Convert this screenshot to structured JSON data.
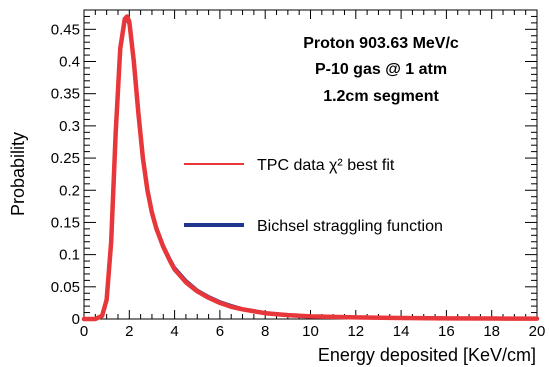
{
  "chart_data": {
    "type": "line",
    "xlabel": "Energy deposited [KeV/cm]",
    "ylabel": "Probability",
    "xlim": [
      0,
      20
    ],
    "ylim": [
      0,
      0.48
    ],
    "xticks": [
      0,
      2,
      4,
      6,
      8,
      10,
      12,
      14,
      16,
      18,
      20
    ],
    "yticks": [
      0,
      0.05,
      0.1,
      0.15,
      0.2,
      0.25,
      0.3,
      0.35,
      0.4,
      0.45
    ],
    "ytick_labels": [
      "0",
      "0.05",
      "0.1",
      "0.15",
      "0.2",
      "0.25",
      "0.3",
      "0.35",
      "0.4",
      "0.45"
    ],
    "annotation": [
      "Proton 903.63 MeV/c",
      "P-10 gas @ 1 atm",
      "1.2cm segment"
    ],
    "legend_placement": "right",
    "series": [
      {
        "name": "TPC data χ² best fit",
        "color": "#e8373a",
        "x": [
          0,
          0.5,
          0.8,
          1.0,
          1.2,
          1.4,
          1.6,
          1.8,
          1.9,
          2.0,
          2.2,
          2.4,
          2.6,
          2.8,
          3.0,
          3.2,
          3.5,
          3.8,
          4.0,
          4.5,
          5.0,
          5.5,
          6.0,
          6.5,
          7.0,
          8.0,
          9.0,
          10.0,
          12.0,
          14.0,
          16.0,
          18.0,
          20.0
        ],
        "y": [
          0,
          0,
          0.005,
          0.03,
          0.12,
          0.29,
          0.42,
          0.466,
          0.47,
          0.462,
          0.4,
          0.32,
          0.25,
          0.2,
          0.165,
          0.14,
          0.112,
          0.09,
          0.077,
          0.057,
          0.043,
          0.033,
          0.025,
          0.019,
          0.015,
          0.009,
          0.006,
          0.004,
          0.0025,
          0.0015,
          0.001,
          0.0007,
          0.0005
        ]
      },
      {
        "name": "Bichsel straggling function",
        "color": "#1f3590",
        "x": [
          0,
          0.5,
          0.8,
          1.0,
          1.2,
          1.4,
          1.6,
          1.8,
          1.9,
          2.0,
          2.2,
          2.4,
          2.6,
          2.8,
          3.0,
          3.2,
          3.5,
          3.8,
          4.0,
          4.5,
          5.0,
          5.5,
          6.0,
          6.5,
          7.0,
          8.0,
          9.0,
          10.0,
          12.0,
          14.0,
          16.0,
          18.0,
          20.0
        ],
        "y": [
          0,
          0,
          0.004,
          0.028,
          0.115,
          0.285,
          0.415,
          0.462,
          0.465,
          0.458,
          0.398,
          0.32,
          0.252,
          0.203,
          0.168,
          0.143,
          0.115,
          0.093,
          0.08,
          0.06,
          0.045,
          0.035,
          0.027,
          0.021,
          0.016,
          0.01,
          0.0065,
          0.0045,
          0.0028,
          0.0017,
          0.0011,
          0.0008,
          0.0006
        ]
      }
    ]
  }
}
